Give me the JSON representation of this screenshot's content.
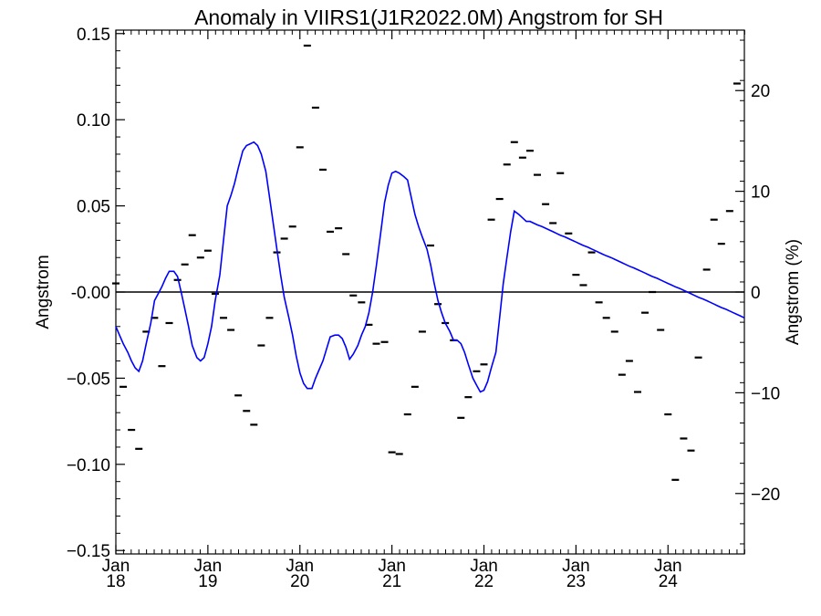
{
  "chart_data": {
    "type": "line",
    "title": "Anomaly in VIIRS1(J1R2022.0M) Angstrom for SH",
    "ylabel": "Angstrom",
    "ylabel_right": "Angstrom (%)",
    "xlim": [
      2018.0,
      2024.83
    ],
    "ylim": [
      -0.152,
      0.152
    ],
    "ylim_right": [
      -26,
      26
    ],
    "y_ticks": [
      -0.15,
      -0.1,
      -0.05,
      0.0,
      0.05,
      0.1,
      0.15
    ],
    "y_tick_labels": [
      "−0.15",
      "−0.10",
      "−0.05",
      "-0.00",
      "0.05",
      "0.10",
      "0.15"
    ],
    "y_right_ticks": [
      -20,
      -10,
      0,
      10,
      20
    ],
    "y_right_tick_labels": [
      "−20",
      "−10",
      "0",
      "10",
      "20"
    ],
    "x_ticks": [
      {
        "x": 2018,
        "month": "Jan",
        "year": "18"
      },
      {
        "x": 2019,
        "month": "Jan",
        "year": "19"
      },
      {
        "x": 2020,
        "month": "Jan",
        "year": "20"
      },
      {
        "x": 2021,
        "month": "Jan",
        "year": "21"
      },
      {
        "x": 2022,
        "month": "Jan",
        "year": "22"
      },
      {
        "x": 2023,
        "month": "Jan",
        "year": "23"
      },
      {
        "x": 2024,
        "month": "Jan",
        "year": "24"
      }
    ],
    "zero_line": 0,
    "colors": {
      "smooth": "#0000ff",
      "monthly": "#000000",
      "axes": "#000000"
    },
    "series": [
      {
        "style": "dash-markers",
        "x": [
          2018.0,
          2018.08,
          2018.17,
          2018.25,
          2018.33,
          2018.42,
          2018.5,
          2018.58,
          2018.67,
          2018.75,
          2018.83,
          2018.92,
          2019.0,
          2019.08,
          2019.17,
          2019.25,
          2019.33,
          2019.42,
          2019.5,
          2019.58,
          2019.67,
          2019.75,
          2019.83,
          2019.92,
          2020.0,
          2020.08,
          2020.17,
          2020.25,
          2020.33,
          2020.42,
          2020.5,
          2020.58,
          2020.67,
          2020.75,
          2020.83,
          2020.92,
          2021.0,
          2021.08,
          2021.17,
          2021.25,
          2021.33,
          2021.42,
          2021.5,
          2021.58,
          2021.67,
          2021.75,
          2021.83,
          2021.92,
          2022.0,
          2022.08,
          2022.17,
          2022.25,
          2022.33,
          2022.42,
          2022.5,
          2022.58,
          2022.67,
          2022.75,
          2022.83,
          2022.92,
          2023.0,
          2023.08,
          2023.17,
          2023.25,
          2023.33,
          2023.42,
          2023.5,
          2023.58,
          2023.67,
          2023.75,
          2023.83,
          2023.92,
          2024.0,
          2024.08,
          2024.17,
          2024.25,
          2024.33,
          2024.42,
          2024.5,
          2024.58,
          2024.67,
          2024.75
        ],
        "y": [
          0.005,
          -0.055,
          -0.08,
          -0.091,
          -0.023,
          -0.015,
          -0.043,
          -0.018,
          0.007,
          0.016,
          0.033,
          0.02,
          0.024,
          -0.001,
          -0.015,
          -0.022,
          -0.06,
          -0.069,
          -0.077,
          -0.031,
          -0.015,
          0.023,
          0.031,
          0.038,
          0.084,
          0.143,
          0.107,
          0.071,
          0.035,
          0.037,
          0.022,
          -0.002,
          -0.006,
          -0.019,
          -0.03,
          -0.029,
          -0.093,
          -0.094,
          -0.071,
          -0.055,
          -0.023,
          0.027,
          -0.007,
          -0.018,
          -0.028,
          -0.073,
          -0.061,
          -0.046,
          -0.042,
          0.042,
          0.054,
          0.074,
          0.087,
          0.078,
          0.082,
          0.068,
          0.051,
          0.04,
          0.069,
          0.034,
          0.01,
          0.004,
          0.023,
          -0.006,
          -0.015,
          -0.023,
          -0.048,
          -0.04,
          -0.058,
          -0.012,
          0.0,
          -0.022,
          -0.071,
          -0.109,
          -0.085,
          -0.092,
          -0.038,
          0.013,
          0.042,
          0.028,
          0.047,
          0.121
        ]
      },
      {
        "style": "line",
        "x": [
          2018.0,
          2018.04,
          2018.08,
          2018.13,
          2018.17,
          2018.21,
          2018.25,
          2018.29,
          2018.33,
          2018.38,
          2018.42,
          2018.46,
          2018.5,
          2018.54,
          2018.58,
          2018.63,
          2018.67,
          2018.71,
          2018.75,
          2018.79,
          2018.83,
          2018.88,
          2018.92,
          2018.96,
          2019.0,
          2019.04,
          2019.08,
          2019.13,
          2019.17,
          2019.21,
          2019.25,
          2019.29,
          2019.33,
          2019.38,
          2019.42,
          2019.46,
          2019.5,
          2019.54,
          2019.58,
          2019.63,
          2019.67,
          2019.71,
          2019.75,
          2019.79,
          2019.83,
          2019.88,
          2019.92,
          2019.96,
          2020.0,
          2020.04,
          2020.08,
          2020.13,
          2020.17,
          2020.21,
          2020.25,
          2020.29,
          2020.33,
          2020.38,
          2020.42,
          2020.46,
          2020.5,
          2020.54,
          2020.58,
          2020.63,
          2020.67,
          2020.71,
          2020.75,
          2020.79,
          2020.83,
          2020.88,
          2020.92,
          2020.96,
          2021.0,
          2021.04,
          2021.08,
          2021.13,
          2021.17,
          2021.21,
          2021.25,
          2021.29,
          2021.33,
          2021.38,
          2021.42,
          2021.46,
          2021.5,
          2021.54,
          2021.58,
          2021.63,
          2021.67,
          2021.71,
          2021.75,
          2021.79,
          2021.83,
          2021.88,
          2021.92,
          2021.96,
          2022.0,
          2022.04,
          2022.08,
          2022.13,
          2022.17,
          2022.21,
          2022.25,
          2022.29,
          2022.33,
          2022.38,
          2022.42,
          2022.46,
          2022.5,
          2022.54,
          2022.58,
          2022.63,
          2022.67,
          2022.71,
          2022.75,
          2022.79,
          2022.83,
          2022.88,
          2022.92,
          2022.96,
          2023.0,
          2023.04,
          2023.08,
          2023.13,
          2023.17,
          2023.21,
          2023.25,
          2023.29,
          2023.33,
          2023.38,
          2023.42,
          2023.46,
          2023.5,
          2023.54,
          2023.58,
          2023.63,
          2023.67,
          2023.71,
          2023.75,
          2023.79,
          2023.83,
          2023.88,
          2023.92,
          2023.96,
          2024.0,
          2024.04,
          2024.08,
          2024.13,
          2024.17,
          2024.21,
          2024.25,
          2024.29,
          2024.33,
          2024.38,
          2024.42,
          2024.46,
          2024.5,
          2024.54,
          2024.58,
          2024.63,
          2024.67,
          2024.71,
          2024.75,
          2024.79,
          2024.83
        ],
        "y": [
          -0.02,
          -0.025,
          -0.03,
          -0.035,
          -0.04,
          -0.044,
          -0.046,
          -0.04,
          -0.03,
          -0.018,
          -0.005,
          -0.001,
          0.003,
          0.008,
          0.012,
          0.012,
          0.009,
          0.0,
          -0.01,
          -0.02,
          -0.031,
          -0.038,
          -0.04,
          -0.038,
          -0.03,
          -0.02,
          -0.005,
          0.01,
          0.03,
          0.05,
          0.056,
          0.063,
          0.072,
          0.082,
          0.085,
          0.086,
          0.087,
          0.085,
          0.08,
          0.07,
          0.055,
          0.04,
          0.025,
          0.01,
          -0.003,
          -0.015,
          -0.025,
          -0.037,
          -0.047,
          -0.053,
          -0.056,
          -0.056,
          -0.05,
          -0.045,
          -0.04,
          -0.033,
          -0.026,
          -0.025,
          -0.025,
          -0.027,
          -0.032,
          -0.039,
          -0.036,
          -0.031,
          -0.025,
          -0.02,
          -0.012,
          0.0,
          0.015,
          0.035,
          0.052,
          0.062,
          0.069,
          0.07,
          0.069,
          0.067,
          0.065,
          0.055,
          0.045,
          0.038,
          0.032,
          0.025,
          0.016,
          0.005,
          -0.005,
          -0.012,
          -0.018,
          -0.023,
          -0.028,
          -0.028,
          -0.03,
          -0.035,
          -0.042,
          -0.05,
          -0.054,
          -0.058,
          -0.057,
          -0.052,
          -0.044,
          -0.035,
          -0.015,
          0.005,
          0.02,
          0.035,
          0.047,
          0.045,
          0.043,
          0.041,
          0.041,
          0.04,
          0.039,
          0.038,
          0.037,
          0.036,
          0.035,
          0.034,
          0.033,
          0.032,
          0.031,
          0.03,
          0.029,
          0.028,
          0.027,
          0.026,
          0.025,
          0.024,
          0.023,
          0.022,
          0.021,
          0.02,
          0.019,
          0.018,
          0.017,
          0.016,
          0.015,
          0.014,
          0.013,
          0.012,
          0.011,
          0.01,
          0.009,
          0.008,
          0.007,
          0.006,
          0.005,
          0.004,
          0.003,
          0.002,
          0.001,
          0.0,
          -0.001,
          -0.002,
          -0.003,
          -0.004,
          -0.005,
          -0.006,
          -0.007,
          -0.008,
          -0.009,
          -0.01,
          -0.011,
          -0.012,
          -0.013,
          -0.014,
          -0.015
        ]
      }
    ]
  }
}
